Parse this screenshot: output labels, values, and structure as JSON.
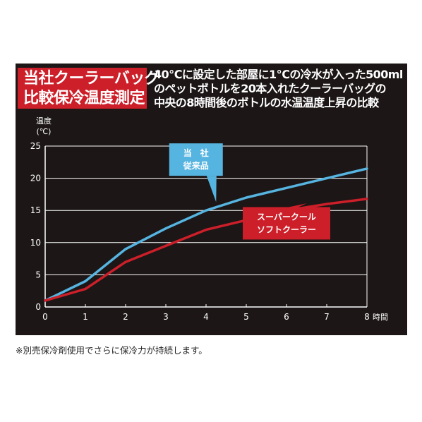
{
  "heading": {
    "title_line1": "当社クーラーバッグ",
    "title_line2": "比較保冷温度測定",
    "description_lines": [
      "40℃に設定した部屋に1℃の冷水が入った500ml",
      "のペットボトルを20本入れたクーラーバッグの",
      "中央の8時間後のボトルの水温温度上昇の比較"
    ]
  },
  "footnote": "※別売保冷剤使用でさらに保冷力が持続します。",
  "colors": {
    "panel_bg": "#1c1616",
    "title_bg": "#cc1f29",
    "series_blue": "#56b4e0",
    "series_red": "#cc1f29",
    "gridline": "#ffffff"
  },
  "chart_data": {
    "type": "line",
    "ylabel_line1": "温度",
    "ylabel_line2": "(℃)",
    "xlabel": "時間",
    "x": [
      0,
      1,
      2,
      3,
      4,
      5,
      6,
      7,
      8
    ],
    "xlim": [
      0,
      8
    ],
    "ylim": [
      0,
      25
    ],
    "yticks": [
      0,
      5,
      10,
      15,
      20,
      25
    ],
    "grid": true,
    "series": [
      {
        "name_lines": [
          "当　社",
          "従来品"
        ],
        "color": "#56b4e0",
        "values": [
          1.0,
          4.0,
          9.0,
          12.2,
          15.0,
          17.0,
          18.5,
          20.0,
          21.5
        ]
      },
      {
        "name_lines": [
          "スーパークール",
          "ソフトクーラー"
        ],
        "color": "#cc1f29",
        "values": [
          1.0,
          2.8,
          7.0,
          9.5,
          12.0,
          13.5,
          15.0,
          16.0,
          16.8
        ]
      }
    ]
  }
}
